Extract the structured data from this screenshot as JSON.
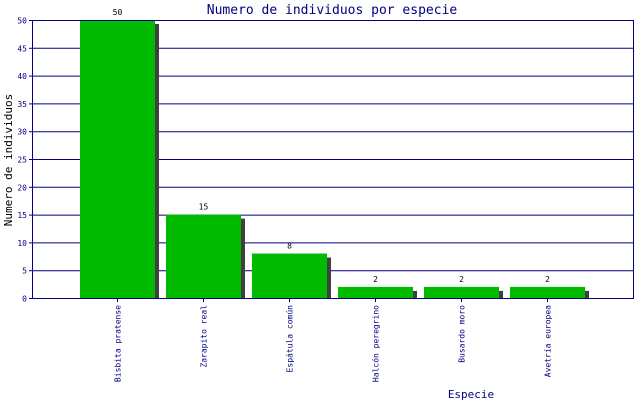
{
  "chart_data": {
    "type": "bar",
    "title": "Numero de individuos por especie",
    "xlabel": "Especie",
    "ylabel": "Numero de individuos",
    "categories": [
      "Bisbita pratense",
      "Zarapito real",
      "Espátula común",
      "Halcón peregrino",
      "Busardo moro",
      "Avetría europea"
    ],
    "values": [
      50,
      15,
      8,
      2,
      2,
      2
    ],
    "ylim": [
      0,
      50
    ],
    "yticks": [
      0,
      5,
      10,
      15,
      20,
      25,
      30,
      35,
      40,
      45,
      50
    ],
    "grid": true,
    "legend": "none",
    "colors": {
      "bar": "#00bb00",
      "bar_shadow": "#404040",
      "grid": "#000080",
      "axis": "#000080",
      "text": "#000080",
      "value_label": "#000000"
    }
  }
}
